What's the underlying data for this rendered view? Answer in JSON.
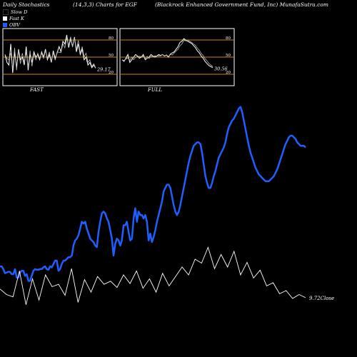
{
  "header": {
    "title_left": "Daily Stochastics",
    "title_mid": "(14,3,3) Charts for EGF",
    "title_right": "(Blackrock Enhanced Government Fund, Inc) MunafaSutra.com"
  },
  "legend": [
    {
      "label": "Slow D",
      "color": "#000000"
    },
    {
      "label": "Fast K",
      "color": "#ffffff"
    },
    {
      "label": "OBV",
      "color": "#1f5fff"
    }
  ],
  "panels": [
    {
      "label": "FAST",
      "value_label": "29.17",
      "value": 29.17
    },
    {
      "label": "FULL",
      "value_label": "30.56",
      "value": 30.56
    }
  ],
  "close_label": "9.72Close",
  "colors": {
    "obv": "#1f5fff",
    "stoch": "#ffffff",
    "level": "#cc8800",
    "background": "#000000"
  },
  "chart_data": {
    "type": "line",
    "mini_panels": {
      "levels": [
        20,
        50,
        80
      ],
      "tick_labels": [
        "80",
        "50",
        "20"
      ],
      "ylim": [
        0,
        100
      ],
      "fast_k": [
        55,
        40,
        35,
        75,
        20,
        60,
        30,
        65,
        45,
        50,
        35,
        70,
        25,
        55,
        40,
        60,
        50,
        55,
        45,
        60,
        50,
        65,
        45,
        55,
        40,
        62,
        48,
        58,
        70,
        60,
        80,
        75,
        92,
        68,
        85,
        70,
        88,
        60,
        75,
        55,
        65,
        45,
        50,
        35,
        40,
        30,
        35,
        29
      ],
      "full_k": [
        45,
        42,
        48,
        55,
        40,
        45,
        50,
        55,
        52,
        48,
        50,
        55,
        45,
        48,
        50,
        55,
        52,
        50,
        52,
        55,
        53,
        55,
        52,
        54,
        50,
        56,
        58,
        60,
        65,
        70,
        78,
        80,
        85,
        82,
        80,
        78,
        76,
        72,
        68,
        62,
        58,
        52,
        48,
        42,
        38,
        34,
        32,
        30
      ]
    },
    "series": [
      {
        "name": "OBV",
        "values": [
          0.78,
          0.78,
          0.7,
          0.58,
          0.6,
          0.62,
          0.62,
          0.55,
          0.55,
          0.7,
          0.45,
          0.45,
          0.6,
          0.65,
          0.65,
          0.5,
          0.55,
          0.35,
          0.35,
          0.5,
          0.65,
          0.7,
          0.68,
          0.68,
          0.7,
          0.7,
          0.75,
          0.78,
          0.7,
          0.68,
          0.78,
          0.75,
          0.85,
          0.95,
          0.95,
          0.65,
          0.7,
          0.85,
          0.95,
          0.95,
          1.0,
          1.05,
          1.05,
          1.1,
          1.4,
          1.55,
          1.6,
          1.7,
          1.9,
          2.1,
          2.05,
          2.1,
          1.9,
          1.75,
          1.6,
          1.55,
          1.5,
          1.4,
          1.35,
          1.8,
          2.1,
          2.35,
          2.4,
          2.35,
          2.2,
          2.1,
          1.85,
          1.6,
          1.1,
          1.45,
          1.6,
          1.55,
          1.4,
          1.55,
          2.0,
          2.0,
          2.1,
          1.8,
          1.55,
          1.6,
          2.2,
          2.5,
          2.1,
          2.4,
          2.3,
          2.3,
          2.2,
          2.3,
          2.1,
          1.55,
          1.75,
          1.5,
          1.65,
          1.85,
          2.1,
          2.3,
          2.5,
          2.7,
          3.0,
          3.1,
          3.2,
          3.2,
          3.1,
          2.85,
          2.6,
          2.4,
          2.3,
          2.4,
          2.6,
          2.85,
          3.1,
          3.35,
          3.6,
          3.85,
          4.05,
          4.2,
          4.35,
          4.4,
          4.45,
          4.45,
          4.4,
          4.15,
          3.8,
          3.45,
          3.25,
          3.1,
          3.1,
          3.25,
          3.45,
          3.6,
          3.8,
          4.0,
          4.1,
          4.2,
          4.3,
          4.45,
          4.7,
          4.9,
          5.0,
          5.1,
          5.15,
          5.25,
          5.35,
          5.45,
          5.5,
          5.35,
          5.1,
          4.85,
          4.6,
          4.35,
          4.15,
          4.0,
          3.85,
          3.7,
          3.6,
          3.5,
          3.45,
          3.4,
          3.35,
          3.3,
          3.3,
          3.3,
          3.35,
          3.4,
          3.45,
          3.55,
          3.65,
          3.8,
          3.95,
          4.1,
          4.25,
          4.4,
          4.5,
          4.6,
          4.65,
          4.65,
          4.6,
          4.55,
          4.45,
          4.4,
          4.35,
          4.35,
          4.35,
          4.3
        ]
      },
      {
        "name": "Stochastic",
        "values": [
          32,
          25,
          22,
          55,
          12,
          45,
          18,
          50,
          35,
          38,
          24,
          58,
          15,
          44,
          28,
          48,
          38,
          42,
          34,
          50,
          39,
          55,
          33,
          45,
          28,
          52,
          36,
          48,
          60,
          50,
          70,
          65,
          85,
          58,
          76,
          60,
          80,
          50,
          66,
          46,
          56,
          36,
          40,
          26,
          30,
          20,
          25,
          21
        ]
      }
    ],
    "xlabel": "",
    "ylabel": ""
  }
}
